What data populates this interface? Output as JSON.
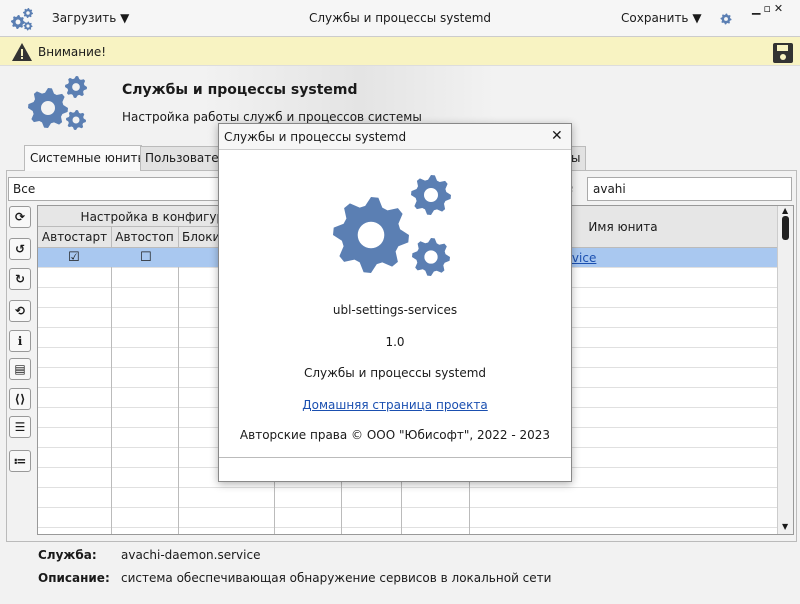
{
  "titlebar": {
    "load": "Загрузить",
    "title": "Службы и процессы systemd",
    "save": "Сохранить"
  },
  "warning": "Внимание!",
  "header": {
    "title": "Службы и процессы systemd",
    "subtitle": "Настройка работы служб и процессов системы"
  },
  "tabs": [
    "Системные юниты",
    "Пользовател",
    "ы"
  ],
  "filter": {
    "scope": "Все",
    "label": "е",
    "search": "avahi"
  },
  "table": {
    "group": "Настройка в конфигура",
    "columns": [
      "Автостарт",
      "Автостоп",
      "Блоки",
      "Имя юнита"
    ],
    "rows": [
      {
        "autostart": true,
        "autostop": false,
        "unit": "rvice"
      }
    ]
  },
  "details": {
    "service_label": "Служба:",
    "service": "avachi-daemon.service",
    "description_label": "Описание:",
    "description": "система обеспечивающая обнаружение сервисов в локальной сети"
  },
  "dialog": {
    "title": "Службы и процессы systemd",
    "app_id": "ubl-settings-services",
    "version": "1.0",
    "name": "Службы и процессы systemd",
    "link": "Домашняя страница проекта",
    "copyright": "Авторские права © ООО \"Юбисофт\", 2022 - 2023"
  }
}
